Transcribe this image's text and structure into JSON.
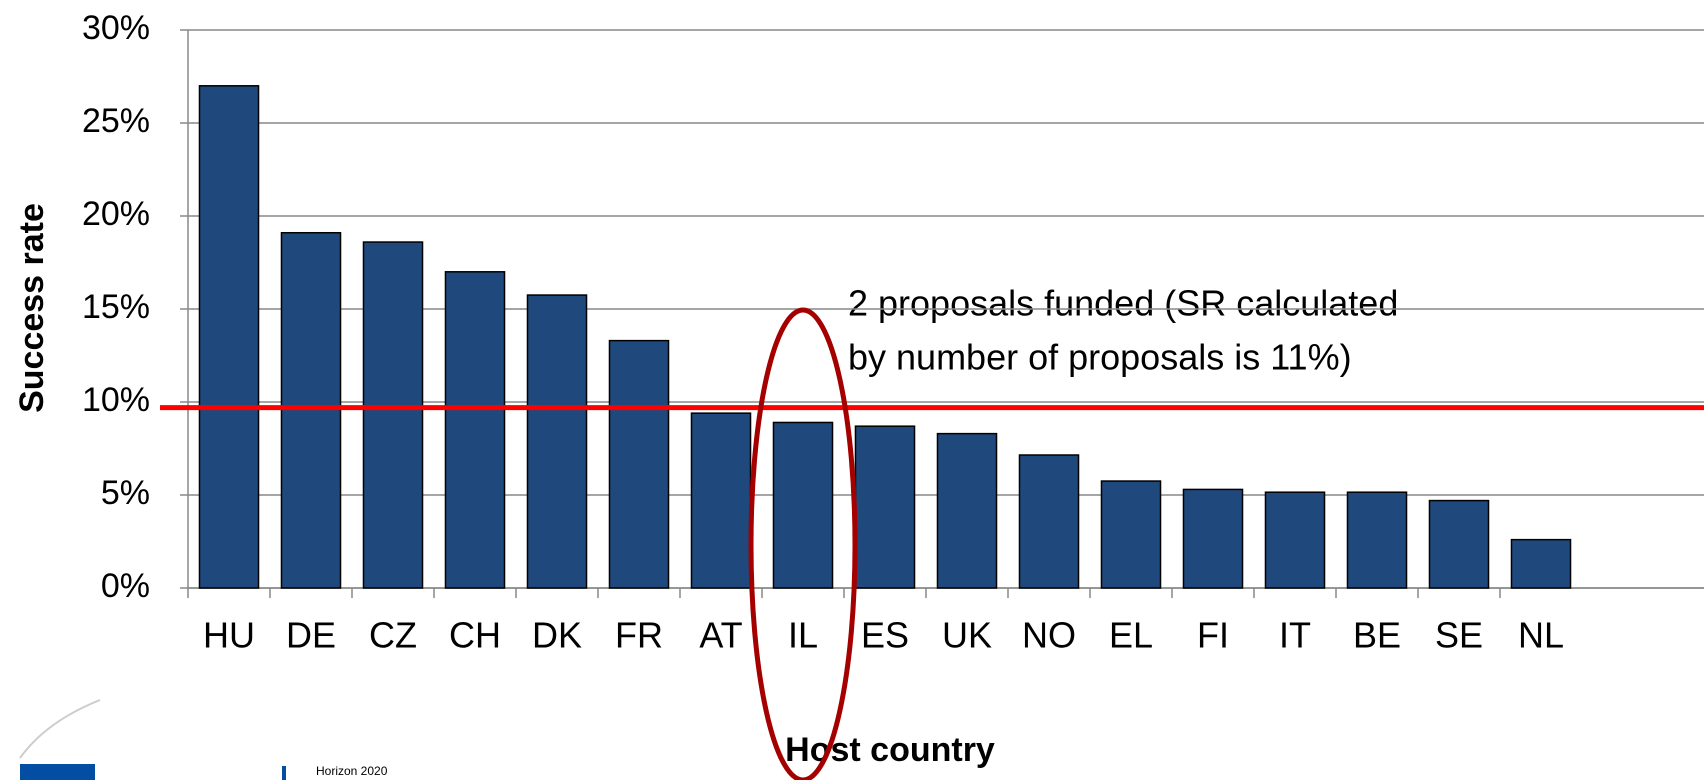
{
  "chart_data": {
    "type": "bar",
    "categories": [
      "HU",
      "DE",
      "CZ",
      "CH",
      "DK",
      "FR",
      "AT",
      "IL",
      "ES",
      "UK",
      "NO",
      "EL",
      "FI",
      "IT",
      "BE",
      "SE",
      "NL"
    ],
    "values": [
      27.0,
      19.1,
      18.6,
      17.0,
      15.75,
      13.3,
      9.4,
      8.9,
      8.7,
      8.3,
      7.15,
      5.75,
      5.3,
      5.15,
      5.15,
      4.7,
      2.6
    ],
    "color": "#1f497d",
    "ylim": [
      0,
      30
    ],
    "yticks": [
      {
        "value": 0,
        "label": "0%"
      },
      {
        "value": 5,
        "label": "5%"
      },
      {
        "value": 10,
        "label": "10%"
      },
      {
        "value": 15,
        "label": "15%"
      },
      {
        "value": 20,
        "label": "20%"
      },
      {
        "value": 25,
        "label": "25%"
      },
      {
        "value": 30,
        "label": "30%"
      }
    ],
    "grid": true,
    "y_label": "Success rate",
    "x_label": "Host country",
    "reference_line": 9.7,
    "reference_color": "#ff0000",
    "annotation": [
      "2 proposals funded (SR calculated",
      "by number of proposals is 11%)"
    ],
    "footer": "Horizon 2020"
  }
}
